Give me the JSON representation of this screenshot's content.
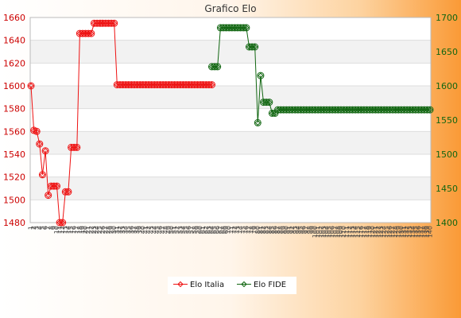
{
  "chart_data": {
    "type": "line",
    "title": "Grafico Elo",
    "legend_position": "bottom-center",
    "grid": true,
    "left_axis": {
      "ylim": [
        1480,
        1660
      ],
      "ticks": [
        1480,
        1500,
        1520,
        1540,
        1560,
        1580,
        1600,
        1620,
        1640,
        1660
      ],
      "color": "#cc0000"
    },
    "right_axis": {
      "ylim": [
        1400,
        1700
      ],
      "ticks": [
        1400,
        1450,
        1500,
        1550,
        1600,
        1650,
        1700
      ],
      "color": "#116611"
    },
    "x_tick_labels": [
      "1",
      "2",
      "3",
      "4",
      "5",
      "6",
      "7",
      "8",
      "9",
      "10",
      "11",
      "12",
      "13",
      "14",
      "15",
      "16",
      "17",
      "18",
      "19",
      "20",
      "21",
      "22",
      "23",
      "24",
      "25",
      "26",
      "27",
      "28",
      "29",
      "30",
      "31",
      "32",
      "33",
      "34",
      "35",
      "36",
      "37",
      "38",
      "39",
      "40",
      "41",
      "42",
      "43",
      "44",
      "45",
      "46",
      "47",
      "48",
      "49",
      "50",
      "51",
      "52",
      "53",
      "54",
      "55",
      "56",
      "57",
      "58",
      "59",
      "60",
      "61",
      "62",
      "63",
      "64",
      "65",
      "66",
      "67",
      "68",
      "69",
      "70",
      "71",
      "72",
      "73",
      "74",
      "75",
      "76",
      "77",
      "78",
      "79",
      "80",
      "81",
      "82",
      "83",
      "84",
      "85",
      "86",
      "87",
      "88",
      "89",
      "90",
      "91",
      "92",
      "93",
      "94",
      "95",
      "96",
      "97",
      "98",
      "99",
      "100",
      "101",
      "102",
      "103",
      "104",
      "105",
      "106",
      "107",
      "108",
      "109",
      "110",
      "111",
      "112",
      "113",
      "114",
      "115",
      "116",
      "117",
      "118",
      "119",
      "120",
      "121",
      "122",
      "123",
      "124",
      "125",
      "126",
      "127",
      "128",
      "129",
      "130",
      "131",
      "132",
      "133",
      "134",
      "135",
      "136",
      "137",
      "138",
      "139",
      "140"
    ],
    "series": [
      {
        "name": "Elo Italia",
        "axis": "left",
        "color": "#ee1111",
        "x": [
          1,
          2,
          3,
          4,
          5,
          6,
          7,
          8,
          9,
          10,
          11,
          12,
          13,
          14,
          15,
          16,
          17,
          18,
          19,
          20,
          21,
          22,
          23,
          24,
          25,
          26,
          27,
          28,
          29,
          30,
          31,
          32,
          33,
          34,
          35,
          36,
          37,
          38,
          39,
          40,
          41,
          42,
          43,
          44,
          45,
          46,
          47,
          48,
          49,
          50,
          51,
          52,
          53,
          54,
          55,
          56,
          57,
          58,
          59,
          60,
          61,
          62,
          63,
          64
        ],
        "values": [
          1600,
          1561,
          1560,
          1549,
          1522,
          1543,
          1504,
          1512,
          1512,
          1512,
          1480,
          1480,
          1507,
          1507,
          1546,
          1546,
          1546,
          1646,
          1646,
          1646,
          1646,
          1646,
          1655,
          1655,
          1655,
          1655,
          1655,
          1655,
          1655,
          1655,
          1601,
          1601,
          1601,
          1601,
          1601,
          1601,
          1601,
          1601,
          1601,
          1601,
          1601,
          1601,
          1601,
          1601,
          1601,
          1601,
          1601,
          1601,
          1601,
          1601,
          1601,
          1601,
          1601,
          1601,
          1601,
          1601,
          1601,
          1601,
          1601,
          1601,
          1601,
          1601,
          1601,
          1601
        ]
      },
      {
        "name": "Elo FIDE",
        "axis": "right",
        "color": "#116611",
        "x": [
          64,
          65,
          66,
          67,
          68,
          69,
          70,
          71,
          72,
          73,
          74,
          75,
          76,
          77,
          78,
          79,
          80,
          81,
          82,
          83,
          84,
          85,
          86,
          87,
          88,
          89,
          90,
          91,
          92,
          93,
          94,
          95,
          96,
          97,
          98,
          99,
          100,
          101,
          102,
          103,
          104,
          105,
          106,
          107,
          108,
          109,
          110,
          111,
          112,
          113,
          114,
          115,
          116,
          117,
          118,
          119,
          120,
          121,
          122,
          123,
          124,
          125,
          126,
          127,
          128,
          129,
          130,
          131,
          132,
          133,
          134,
          135,
          136,
          137,
          138,
          139,
          140
        ],
        "values": [
          1628,
          1628,
          1628,
          1685,
          1685,
          1685,
          1685,
          1685,
          1685,
          1685,
          1685,
          1685,
          1685,
          1657,
          1657,
          1657,
          1546,
          1615,
          1576,
          1576,
          1576,
          1560,
          1560,
          1565,
          1565,
          1565,
          1565,
          1565,
          1565,
          1565,
          1565,
          1565,
          1565,
          1565,
          1565,
          1565,
          1565,
          1565,
          1565,
          1565,
          1565,
          1565,
          1565,
          1565,
          1565,
          1565,
          1565,
          1565,
          1565,
          1565,
          1565,
          1565,
          1565,
          1565,
          1565,
          1565,
          1565,
          1565,
          1565,
          1565,
          1565,
          1565,
          1565,
          1565,
          1565,
          1565,
          1565,
          1565,
          1565,
          1565,
          1565,
          1565,
          1565,
          1565,
          1565,
          1565,
          1565
        ]
      }
    ]
  }
}
